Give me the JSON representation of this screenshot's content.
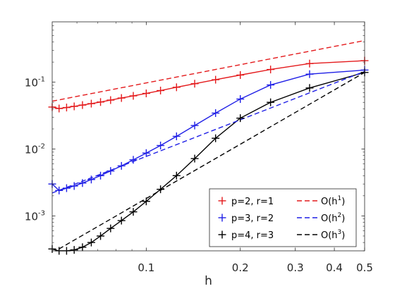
{
  "chart_data": {
    "type": "line",
    "xlabel": "h",
    "ylabel": "",
    "xscale": "log",
    "yscale": "log",
    "xlim": [
      0.05,
      0.5
    ],
    "ylim": [
      0.0003,
      0.8
    ],
    "grid": false,
    "legend_position": "bottom-right",
    "x_ticks": [
      {
        "value": 0.1,
        "label": "0.1"
      },
      {
        "value": 0.2,
        "label": "0.2"
      },
      {
        "value": 0.3,
        "label": "0.3"
      },
      {
        "value": 0.4,
        "label": "0.4"
      },
      {
        "value": 0.5,
        "label": "0.5"
      }
    ],
    "y_ticks": [
      {
        "value": 0.001,
        "base": "10",
        "exp": "-3"
      },
      {
        "value": 0.01,
        "base": "10",
        "exp": "-2"
      },
      {
        "value": 0.1,
        "base": "10",
        "exp": "-1"
      }
    ],
    "series": [
      {
        "name": "p=2, r=1",
        "color": "#e41a1c",
        "style": "solid",
        "marker": "+",
        "x": [
          0.5,
          0.3333,
          0.25,
          0.2,
          0.1667,
          0.1429,
          0.125,
          0.1111,
          0.1,
          0.0909,
          0.0833,
          0.0769,
          0.0714,
          0.0667,
          0.0625,
          0.0588,
          0.0556,
          0.0526,
          0.05
        ],
        "y": [
          0.21,
          0.19,
          0.155,
          0.128,
          0.109,
          0.095,
          0.084,
          0.075,
          0.068,
          0.0625,
          0.058,
          0.054,
          0.0505,
          0.0478,
          0.0455,
          0.0435,
          0.0418,
          0.0404,
          0.0425
        ]
      },
      {
        "name": "p=3, r=2",
        "color": "#1f1fe6",
        "style": "solid",
        "marker": "+",
        "x": [
          0.5,
          0.3333,
          0.25,
          0.2,
          0.1667,
          0.1429,
          0.125,
          0.1111,
          0.1,
          0.0909,
          0.0833,
          0.0769,
          0.0714,
          0.0667,
          0.0625,
          0.0588,
          0.0556,
          0.0526,
          0.05
        ],
        "y": [
          0.152,
          0.132,
          0.091,
          0.056,
          0.0345,
          0.0225,
          0.0155,
          0.0113,
          0.0087,
          0.0069,
          0.0056,
          0.0047,
          0.004,
          0.0035,
          0.0031,
          0.0028,
          0.0026,
          0.0024,
          0.003
        ]
      },
      {
        "name": "p=4, r=3",
        "color": "#000000",
        "style": "solid",
        "marker": "+",
        "x": [
          0.5,
          0.3333,
          0.25,
          0.2,
          0.1667,
          0.1429,
          0.125,
          0.1111,
          0.1,
          0.0909,
          0.0833,
          0.0769,
          0.0714,
          0.0667,
          0.0625,
          0.0588,
          0.0556,
          0.0526,
          0.05
        ],
        "y": [
          0.14,
          0.082,
          0.05,
          0.029,
          0.0145,
          0.0072,
          0.004,
          0.0025,
          0.00165,
          0.00115,
          0.00085,
          0.00065,
          0.0005,
          0.0004,
          0.00034,
          0.00031,
          0.0003,
          0.0003,
          0.00032
        ]
      },
      {
        "name": "O(h^1)",
        "label_base": "O(h",
        "label_exp": "1",
        "label_close": ")",
        "color": "#e41a1c",
        "style": "dashed",
        "marker": "",
        "x": [
          0.05,
          0.5
        ],
        "y": [
          0.052,
          0.42
        ]
      },
      {
        "name": "O(h^2)",
        "label_base": "O(h",
        "label_exp": "2",
        "label_close": ")",
        "color": "#1f1fe6",
        "style": "dashed",
        "marker": "",
        "x": [
          0.05,
          0.5
        ],
        "y": [
          0.0022,
          0.145
        ]
      },
      {
        "name": "O(h^3)",
        "label_base": "O(h",
        "label_exp": "3",
        "label_close": ")",
        "color": "#000000",
        "style": "dashed",
        "marker": "",
        "x": [
          0.05,
          0.5
        ],
        "y": [
          0.00028,
          0.14
        ]
      }
    ]
  }
}
